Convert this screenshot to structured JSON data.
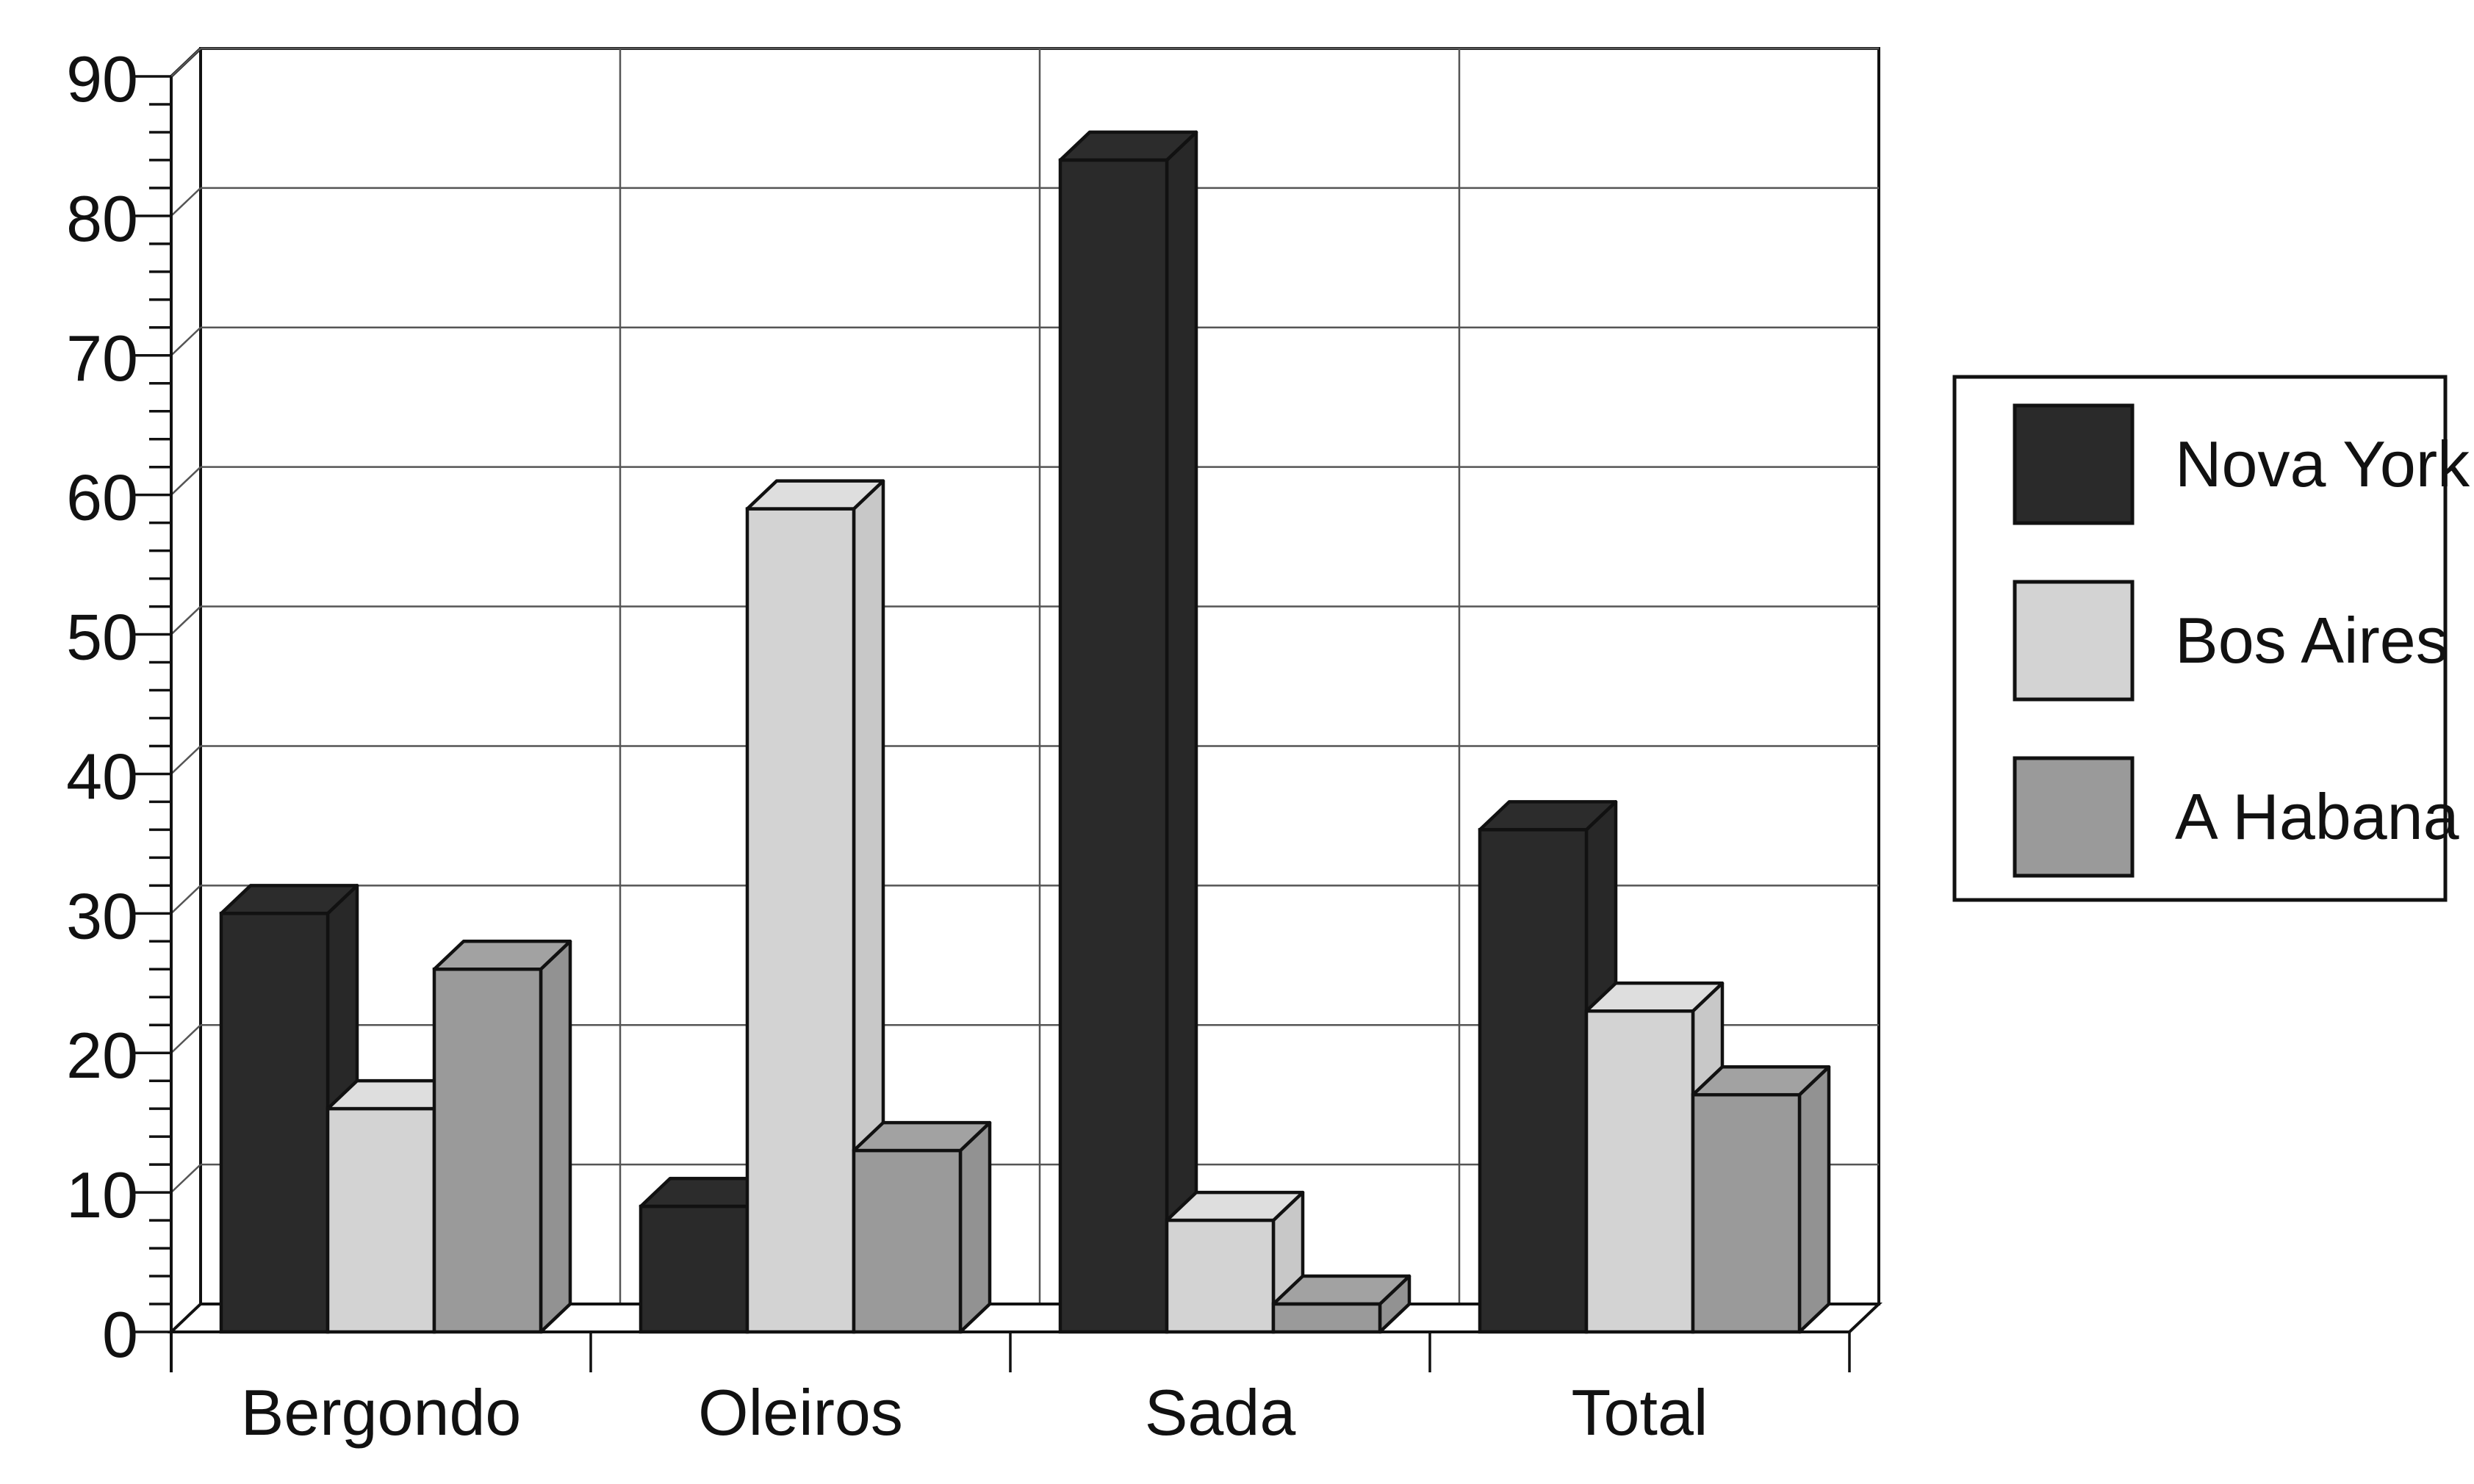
{
  "chart_data": {
    "type": "bar",
    "categories": [
      "Bergondo",
      "Oleiros",
      "Sada",
      "Total"
    ],
    "series": [
      {
        "name": "Nova York",
        "values": [
          30,
          9,
          84,
          36
        ],
        "color": "#2a2a2a"
      },
      {
        "name": "Bos Aires",
        "values": [
          16,
          59,
          8,
          23
        ],
        "color": "#d3d3d3"
      },
      {
        "name": "A Habana",
        "values": [
          26,
          13,
          2,
          17
        ],
        "color": "#9a9a9a"
      }
    ],
    "title": "",
    "xlabel": "",
    "ylabel": "",
    "ylim": [
      0,
      90
    ],
    "yticks": [
      0,
      10,
      20,
      30,
      40,
      50,
      60,
      70,
      80,
      90
    ],
    "grid": true,
    "legend_position": "right",
    "style": "3d"
  }
}
